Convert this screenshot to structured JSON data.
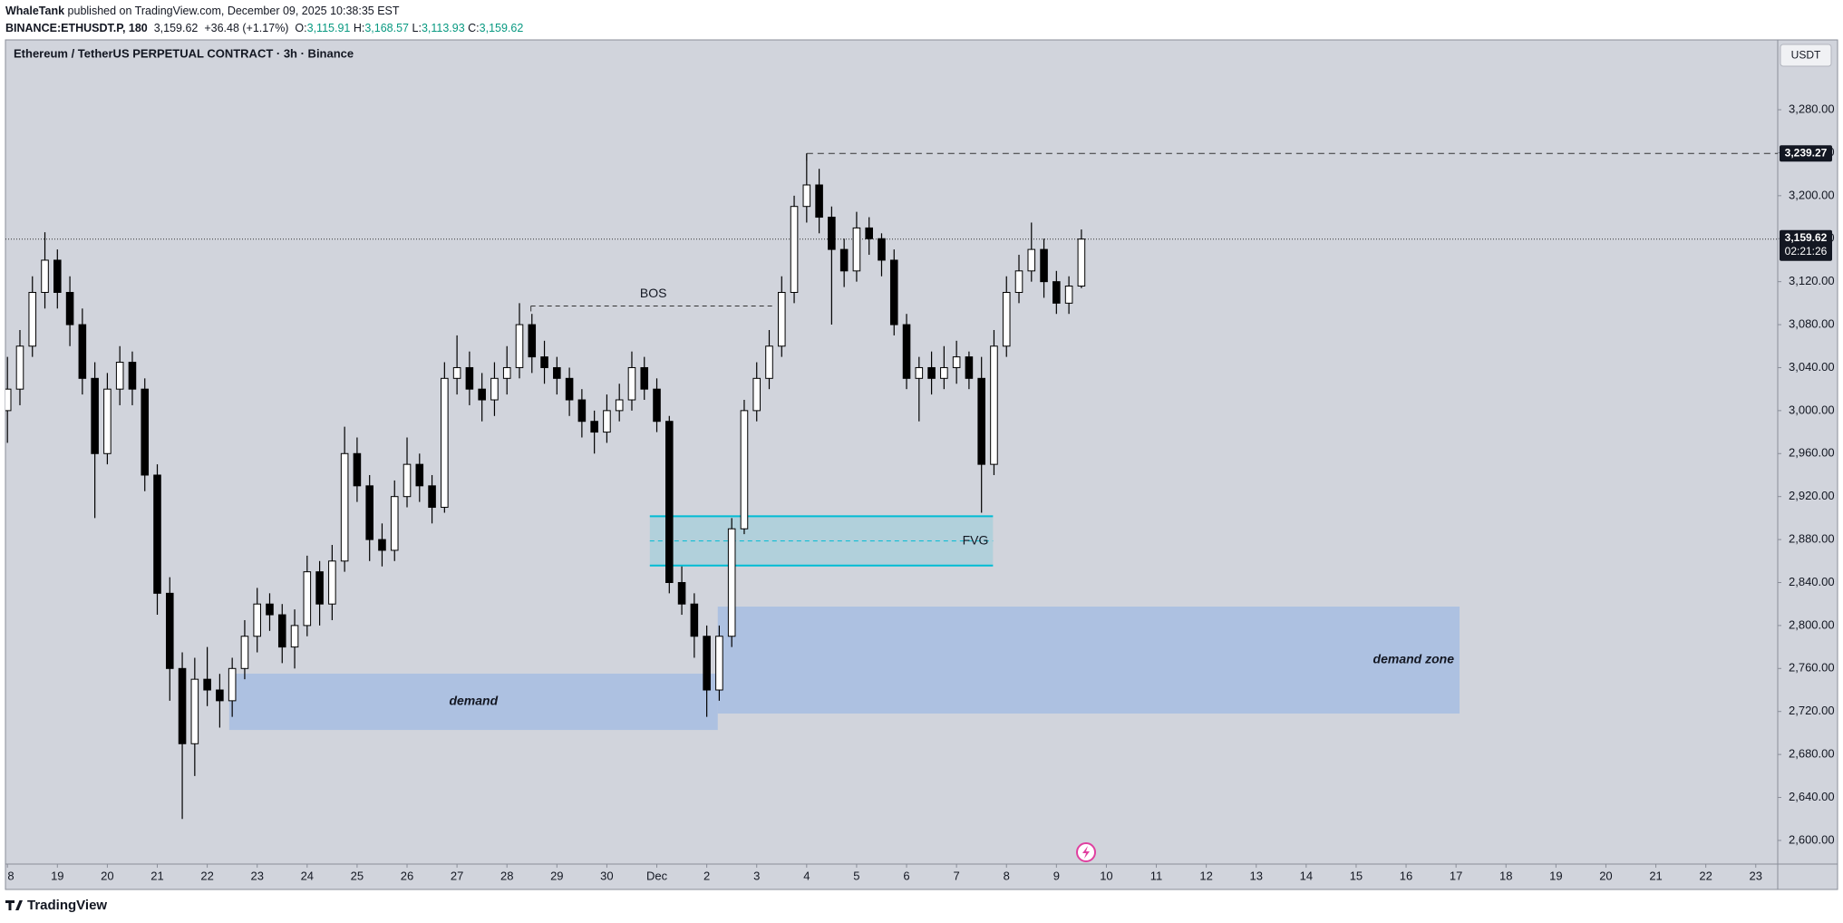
{
  "header": {
    "author": "WhaleTank",
    "published": "published on TradingView.com, December 09, 2025 10:38:35 EST",
    "symbol": "BINANCE:ETHUSDT.P, 180",
    "last": "3,159.62",
    "change": "+36.48 (+1.17%)",
    "o_label": "O:",
    "open": "3,115.91",
    "h_label": "H:",
    "high": "3,168.57",
    "l_label": "L:",
    "low": "3,113.93",
    "c_label": "C:",
    "close": "3,159.62"
  },
  "footer": {
    "logo": "TradingView"
  },
  "currency_button": "USDT",
  "chart_data": {
    "type": "candlestick",
    "title": "Ethereum / TetherUS PERPETUAL CONTRACT · 3h · Binance",
    "up_color": "#ffffff",
    "down_color": "#000000",
    "wick_color": "#000000",
    "x": [
      18,
      18.25,
      18.5,
      18.75,
      19,
      19.25,
      19.5,
      19.75,
      20,
      20.25,
      20.5,
      20.75,
      21,
      21.25,
      21.5,
      21.75,
      22,
      22.25,
      22.5,
      22.75,
      23,
      23.25,
      23.5,
      23.75,
      24,
      24.25,
      24.5,
      24.75,
      25,
      25.25,
      25.5,
      25.75,
      26,
      26.25,
      26.5,
      26.75,
      27,
      27.25,
      27.5,
      27.75,
      28,
      28.25,
      28.5,
      28.75,
      29,
      29.25,
      29.5,
      29.75,
      30,
      30.25,
      30.5,
      30.75,
      31,
      31.25,
      31.5,
      31.75,
      32,
      32.25,
      32.5,
      32.75,
      33,
      33.25,
      33.5,
      33.75,
      34,
      34.25,
      34.5,
      34.75,
      35,
      35.25,
      35.5,
      35.75,
      36,
      36.25,
      36.5,
      36.75,
      37,
      37.25,
      37.5,
      37.75,
      38,
      38.25,
      38.5,
      38.75,
      39,
      39.25,
      39.5
    ],
    "candles": [
      [
        3000,
        3050,
        2970,
        3020
      ],
      [
        3020,
        3075,
        3005,
        3060
      ],
      [
        3060,
        3125,
        3050,
        3110
      ],
      [
        3110,
        3166,
        3095,
        3140
      ],
      [
        3140,
        3150,
        3095,
        3110
      ],
      [
        3110,
        3125,
        3060,
        3080
      ],
      [
        3080,
        3095,
        3015,
        3030
      ],
      [
        3030,
        3045,
        2900,
        2960
      ],
      [
        2960,
        3035,
        2950,
        3020
      ],
      [
        3020,
        3060,
        3005,
        3045
      ],
      [
        3045,
        3055,
        3005,
        3020
      ],
      [
        3020,
        3030,
        2925,
        2940
      ],
      [
        2940,
        2950,
        2810,
        2830
      ],
      [
        2830,
        2845,
        2730,
        2760
      ],
      [
        2760,
        2775,
        2620,
        2690
      ],
      [
        2690,
        2770,
        2660,
        2750
      ],
      [
        2750,
        2780,
        2725,
        2740
      ],
      [
        2740,
        2755,
        2705,
        2730
      ],
      [
        2730,
        2770,
        2715,
        2760
      ],
      [
        2760,
        2805,
        2750,
        2790
      ],
      [
        2790,
        2835,
        2775,
        2820
      ],
      [
        2820,
        2830,
        2795,
        2810
      ],
      [
        2810,
        2820,
        2765,
        2780
      ],
      [
        2780,
        2815,
        2760,
        2800
      ],
      [
        2800,
        2865,
        2790,
        2850
      ],
      [
        2850,
        2860,
        2800,
        2820
      ],
      [
        2820,
        2875,
        2805,
        2860
      ],
      [
        2860,
        2985,
        2850,
        2960
      ],
      [
        2960,
        2975,
        2915,
        2930
      ],
      [
        2930,
        2940,
        2860,
        2880
      ],
      [
        2880,
        2895,
        2855,
        2870
      ],
      [
        2870,
        2935,
        2860,
        2920
      ],
      [
        2920,
        2975,
        2910,
        2950
      ],
      [
        2950,
        2960,
        2915,
        2930
      ],
      [
        2930,
        2940,
        2895,
        2910
      ],
      [
        2910,
        3045,
        2905,
        3030
      ],
      [
        3030,
        3070,
        3015,
        3040
      ],
      [
        3040,
        3055,
        3005,
        3020
      ],
      [
        3020,
        3035,
        2990,
        3010
      ],
      [
        3010,
        3045,
        2995,
        3030
      ],
      [
        3030,
        3060,
        3015,
        3040
      ],
      [
        3040,
        3100,
        3030,
        3080
      ],
      [
        3080,
        3090,
        3035,
        3050
      ],
      [
        3050,
        3065,
        3025,
        3040
      ],
      [
        3040,
        3050,
        3015,
        3030
      ],
      [
        3030,
        3040,
        2995,
        3010
      ],
      [
        3010,
        3020,
        2975,
        2990
      ],
      [
        2990,
        3000,
        2960,
        2980
      ],
      [
        2980,
        3015,
        2970,
        3000
      ],
      [
        3000,
        3025,
        2990,
        3010
      ],
      [
        3010,
        3055,
        3000,
        3040
      ],
      [
        3040,
        3050,
        3010,
        3020
      ],
      [
        3020,
        3030,
        2980,
        2990
      ],
      [
        2990,
        2995,
        2830,
        2840
      ],
      [
        2840,
        2855,
        2810,
        2820
      ],
      [
        2820,
        2830,
        2770,
        2790
      ],
      [
        2790,
        2800,
        2715,
        2740
      ],
      [
        2740,
        2800,
        2730,
        2790
      ],
      [
        2790,
        2900,
        2780,
        2890
      ],
      [
        2890,
        3010,
        2885,
        3000
      ],
      [
        3000,
        3045,
        2990,
        3030
      ],
      [
        3030,
        3075,
        3020,
        3060
      ],
      [
        3060,
        3125,
        3050,
        3110
      ],
      [
        3110,
        3200,
        3100,
        3190
      ],
      [
        3190,
        3239.27,
        3175,
        3210
      ],
      [
        3210,
        3225,
        3165,
        3180
      ],
      [
        3180,
        3190,
        3080,
        3150
      ],
      [
        3150,
        3160,
        3115,
        3130
      ],
      [
        3130,
        3185,
        3120,
        3170
      ],
      [
        3170,
        3180,
        3145,
        3160
      ],
      [
        3160,
        3165,
        3125,
        3140
      ],
      [
        3140,
        3150,
        3070,
        3080
      ],
      [
        3080,
        3090,
        3020,
        3030
      ],
      [
        3030,
        3050,
        2990,
        3040
      ],
      [
        3040,
        3055,
        3015,
        3030
      ],
      [
        3030,
        3060,
        3020,
        3040
      ],
      [
        3040,
        3065,
        3025,
        3050
      ],
      [
        3050,
        3055,
        3020,
        3030
      ],
      [
        3030,
        3050,
        2905,
        2950
      ],
      [
        2950,
        3075,
        2940,
        3060
      ],
      [
        3060,
        3125,
        3050,
        3110
      ],
      [
        3110,
        3145,
        3100,
        3130
      ],
      [
        3130,
        3175,
        3120,
        3150
      ],
      [
        3150,
        3160,
        3105,
        3120
      ],
      [
        3120,
        3130,
        3090,
        3100
      ],
      [
        3100,
        3125,
        3090,
        3115.91
      ],
      [
        3115.91,
        3168.57,
        3113.93,
        3159.62
      ]
    ],
    "xlim": [
      17.96,
      53.44
    ],
    "ylim": [
      2578,
      3345
    ],
    "xticks": [
      {
        "value": 18,
        "label": "8"
      },
      19,
      20,
      21,
      22,
      23,
      24,
      25,
      26,
      27,
      28,
      29,
      30,
      {
        "value": 31,
        "label": "Dec"
      },
      {
        "value": 32,
        "label": "2"
      },
      {
        "value": 33,
        "label": "3"
      },
      {
        "value": 34,
        "label": "4"
      },
      {
        "value": 35,
        "label": "5"
      },
      {
        "value": 36,
        "label": "6"
      },
      {
        "value": 37,
        "label": "7"
      },
      {
        "value": 38,
        "label": "8"
      },
      {
        "value": 39,
        "label": "9"
      },
      {
        "value": 40,
        "label": "10"
      },
      {
        "value": 41,
        "label": "11"
      },
      {
        "value": 42,
        "label": "12"
      },
      {
        "value": 43,
        "label": "13"
      },
      {
        "value": 44,
        "label": "14"
      },
      {
        "value": 45,
        "label": "15"
      },
      {
        "value": 46,
        "label": "16"
      },
      {
        "value": 47,
        "label": "17"
      },
      {
        "value": 48,
        "label": "18"
      },
      {
        "value": 49,
        "label": "19"
      },
      {
        "value": 50,
        "label": "20"
      },
      {
        "value": 51,
        "label": "21"
      },
      {
        "value": 52,
        "label": "22"
      },
      {
        "value": 53,
        "label": "23"
      }
    ],
    "yticks": [
      {
        "value": 2600,
        "label": "2,600.00"
      },
      {
        "value": 2640,
        "label": "2,640.00"
      },
      {
        "value": 2680,
        "label": "2,680.00"
      },
      {
        "value": 2720,
        "label": "2,720.00"
      },
      {
        "value": 2760,
        "label": "2,760.00"
      },
      {
        "value": 2800,
        "label": "2,800.00"
      },
      {
        "value": 2840,
        "label": "2,840.00"
      },
      {
        "value": 2880,
        "label": "2,880.00"
      },
      {
        "value": 2920,
        "label": "2,920.00"
      },
      {
        "value": 2960,
        "label": "2,960.00"
      },
      {
        "value": 3000,
        "label": "3,000.00"
      },
      {
        "value": 3040,
        "label": "3,040.00"
      },
      {
        "value": 3080,
        "label": "3,080.00"
      },
      {
        "value": 3120,
        "label": "3,120.00"
      },
      {
        "value": 3160,
        "label": "3,160.00"
      },
      {
        "value": 3200,
        "label": "3,200.00"
      },
      {
        "value": 3240,
        "label": "3,240.00"
      },
      {
        "value": 3280,
        "label": "3,280.00"
      }
    ],
    "zones": [
      {
        "label": "demand",
        "color": "#8fb0e6",
        "x": [
          22.44,
          32.22
        ],
        "y": [
          2702.8,
          2755.2
        ]
      },
      {
        "label": "demand zone",
        "color": "#8fb0e6",
        "x": [
          32.22,
          47.07
        ],
        "y": [
          2718.1,
          2817.6
        ]
      }
    ],
    "fvg": {
      "label": "FVG",
      "color": "#00bcd4",
      "x": [
        30.86,
        37.73
      ],
      "y": [
        2855.8,
        2901.7
      ]
    },
    "bos": {
      "label": "BOS",
      "x": [
        28.48,
        33.38
      ],
      "value": 3097.4
    },
    "high_line": {
      "value": 3239.27,
      "label": "3,239.27",
      "x": 34
    },
    "price_line": {
      "value": 3159.62,
      "label": "3,159.62",
      "countdown": "02:21:26"
    }
  }
}
